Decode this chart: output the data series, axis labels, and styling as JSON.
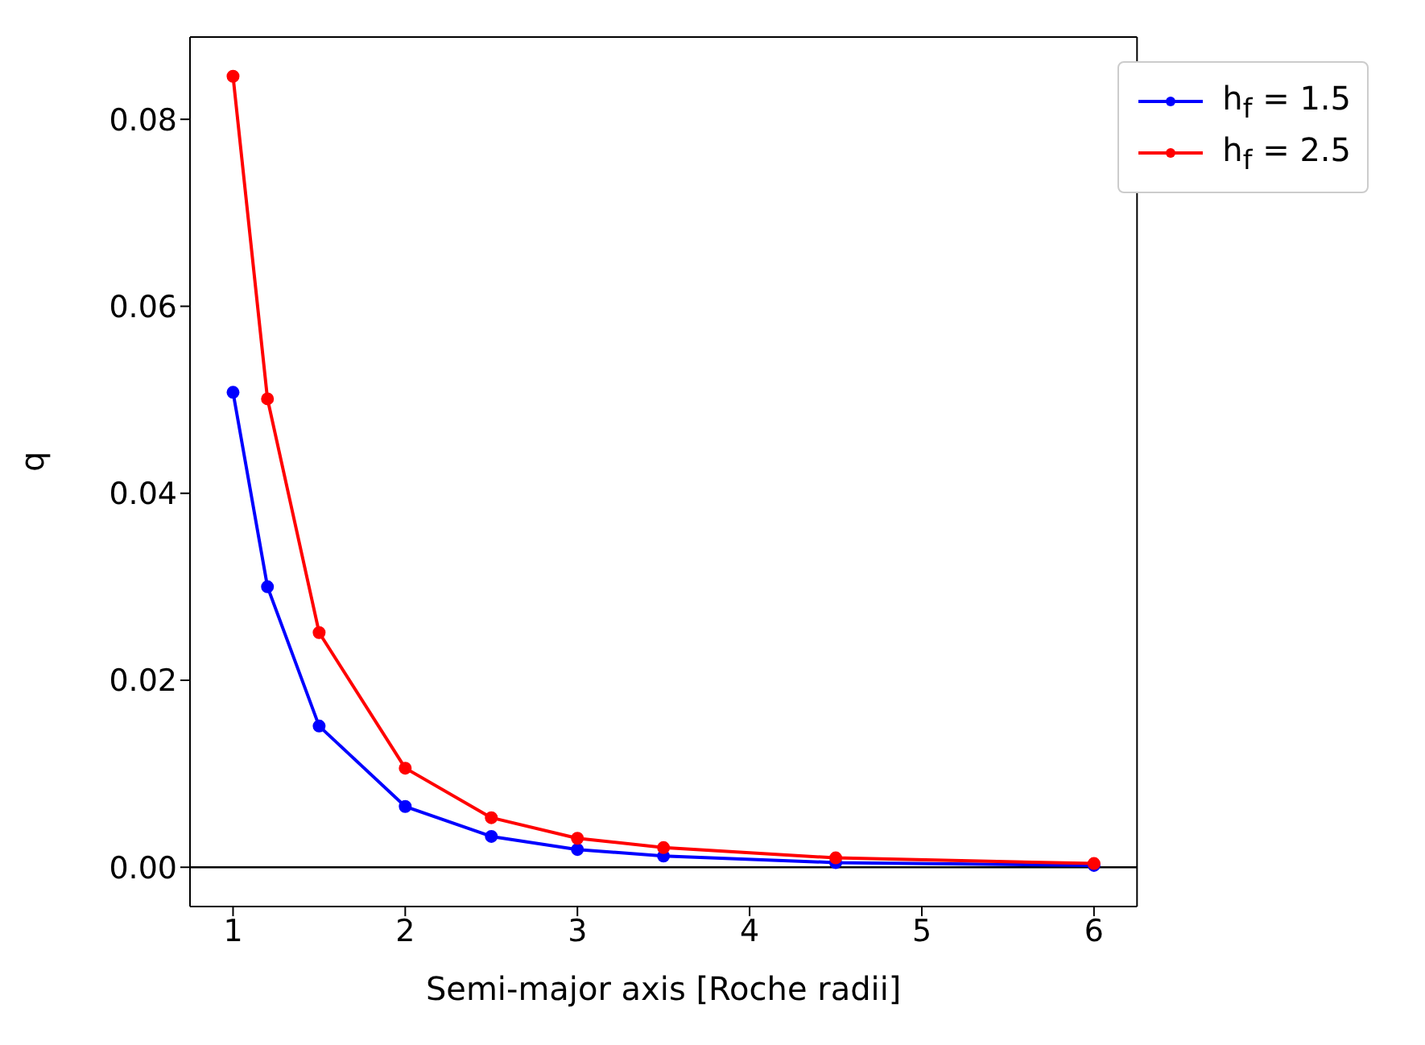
{
  "chart_data": {
    "type": "line",
    "xlabel": "Semi-major axis [Roche radii]",
    "ylabel": "q",
    "x": [
      1,
      1.2,
      1.5,
      2,
      2.5,
      3,
      3.5,
      4.5,
      6
    ],
    "series": [
      {
        "name": "h$_{f}$ = 1.5",
        "color": "#0000ff",
        "values": [
          0.0508,
          0.03,
          0.0151,
          0.0065,
          0.0033,
          0.0019,
          0.0012,
          0.0005,
          0.0002
        ]
      },
      {
        "name": "h$_{f}$ = 2.5",
        "color": "#ff0000",
        "values": [
          0.0846,
          0.0501,
          0.0251,
          0.0106,
          0.0053,
          0.0031,
          0.0021,
          0.001,
          0.0004
        ]
      }
    ],
    "xlim": [
      0.75,
      6.25
    ],
    "xticks": [
      1,
      2,
      3,
      4,
      5,
      6
    ],
    "ylim": [
      -0.0042,
      0.0888
    ],
    "yticks": [
      {
        "value": 0,
        "label": "0.00"
      },
      {
        "value": 0.02,
        "label": "0.02"
      },
      {
        "value": 0.04,
        "label": "0.04"
      },
      {
        "value": 0.06,
        "label": "0.06"
      },
      {
        "value": 0.08,
        "label": "0.08"
      }
    ],
    "ref_lines": [
      {
        "axis": "y",
        "value": 0,
        "color": "#000000"
      }
    ],
    "legend": "top right",
    "marker": "circle",
    "line_style": "solid"
  }
}
